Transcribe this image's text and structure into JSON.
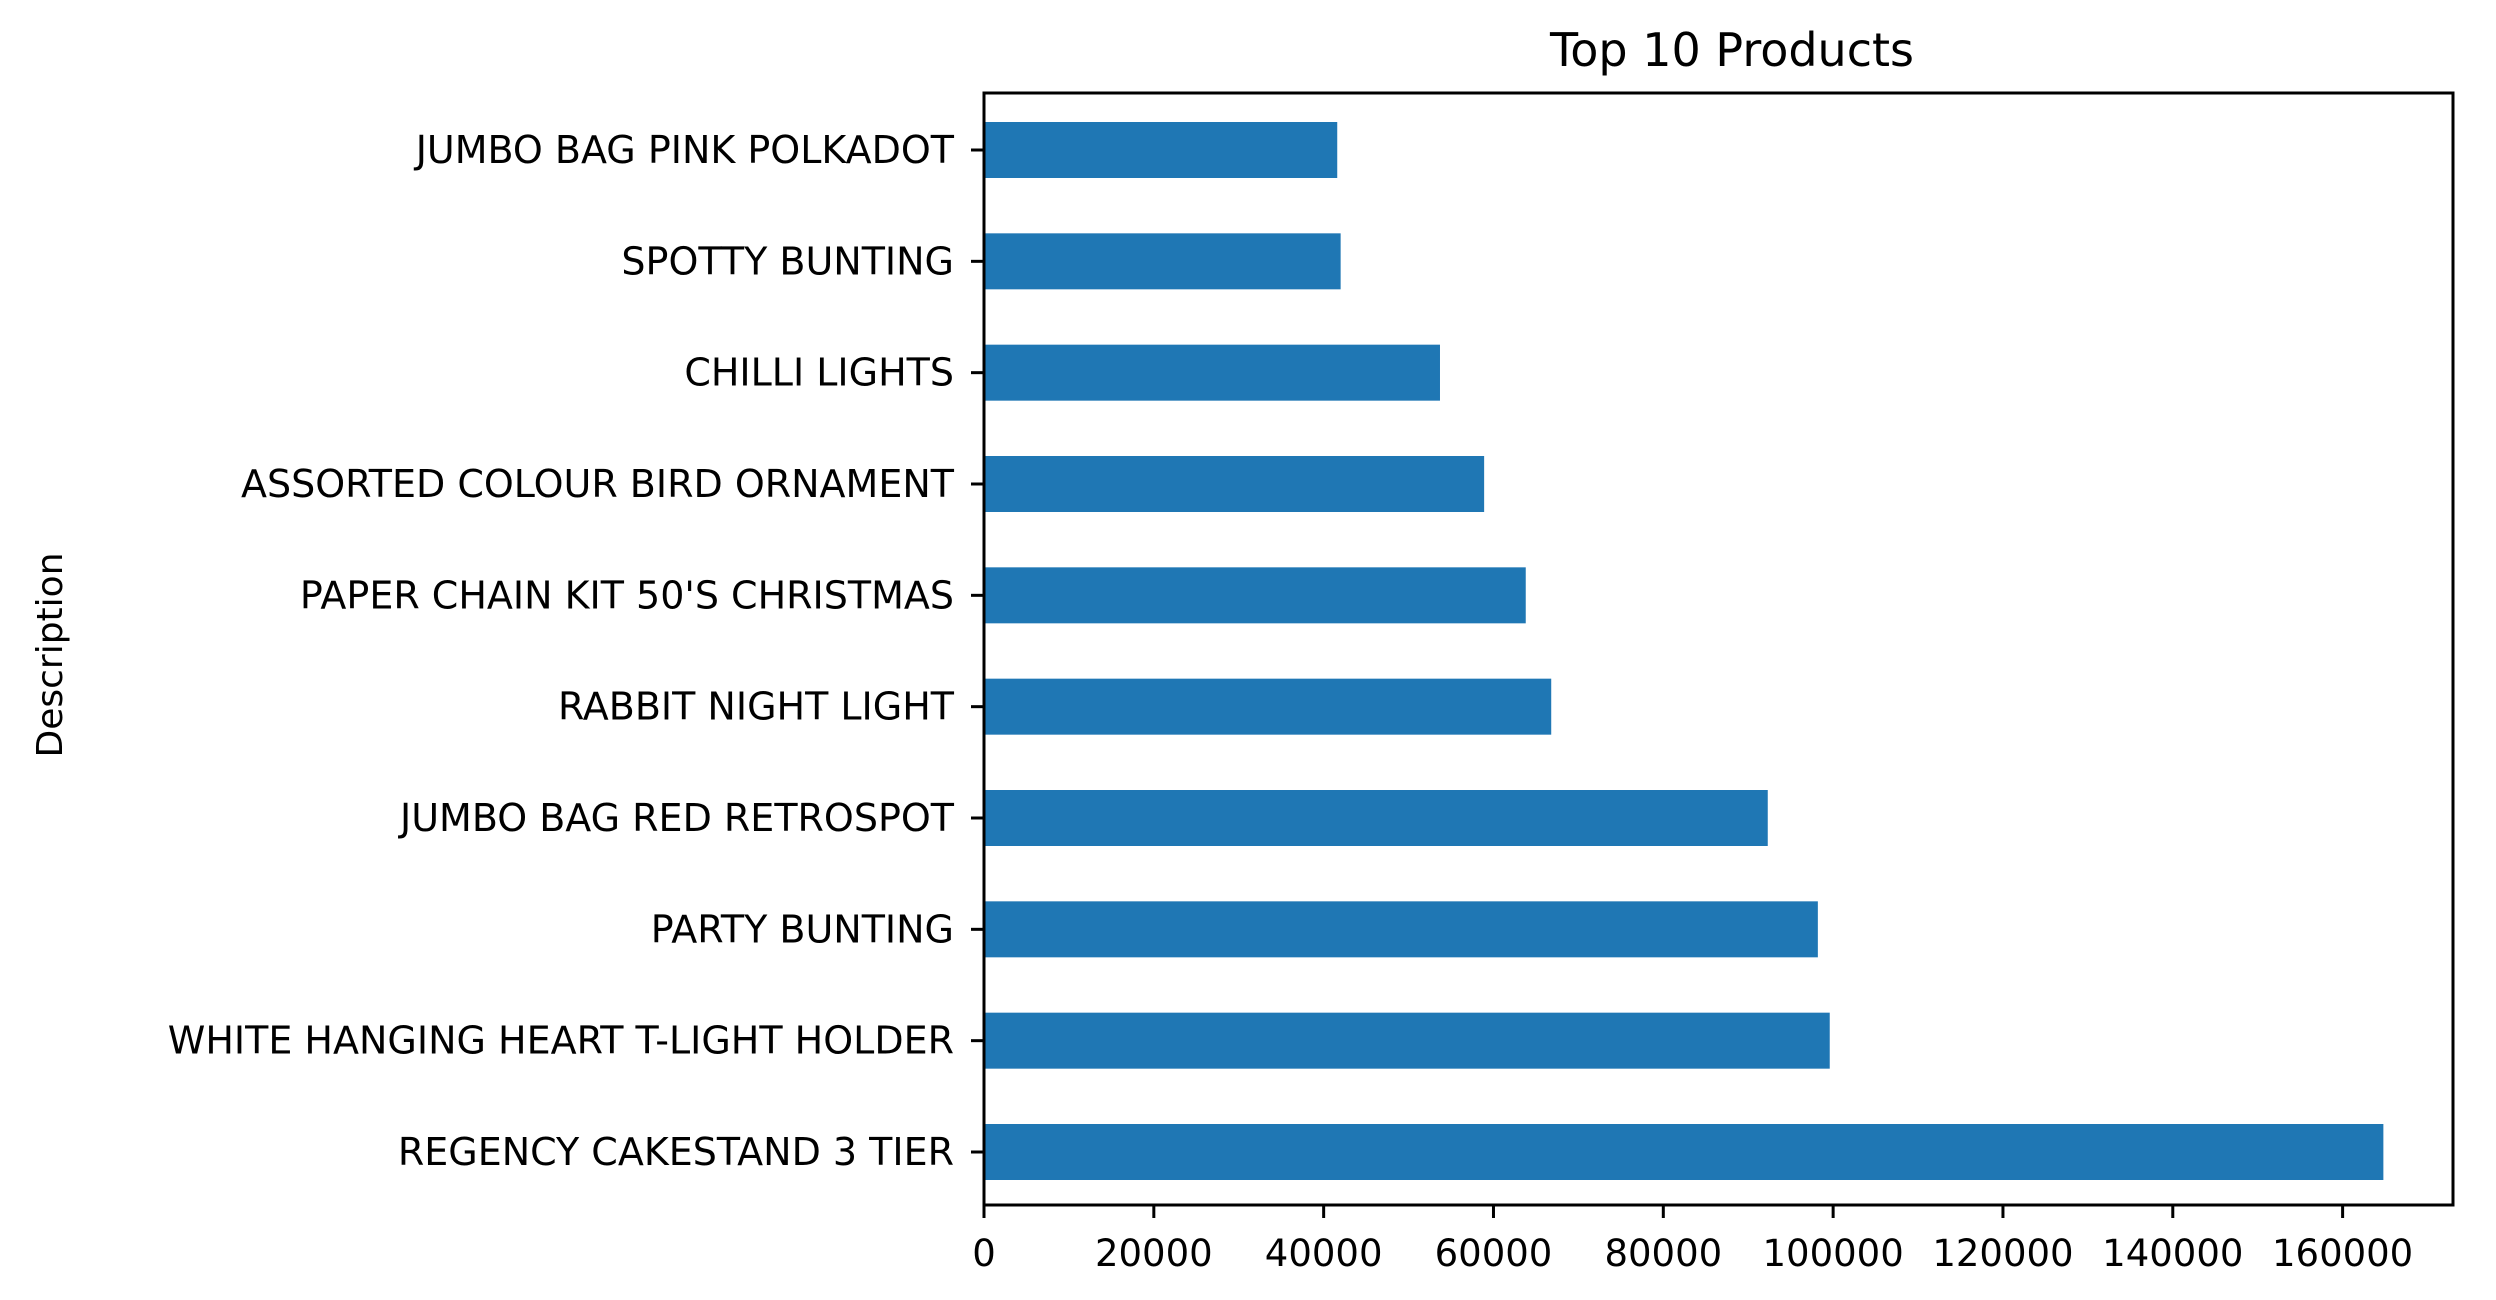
{
  "chart_data": {
    "type": "bar",
    "orientation": "horizontal",
    "title": "Top 10 Products",
    "xlabel": "",
    "ylabel": "Description",
    "categories": [
      "REGENCY CAKESTAND 3 TIER",
      "WHITE HANGING HEART T-LIGHT HOLDER",
      "PARTY BUNTING",
      "JUMBO BAG RED RETROSPOT",
      "RABBIT NIGHT LIGHT",
      "PAPER CHAIN KIT 50'S CHRISTMAS ",
      "ASSORTED COLOUR BIRD ORNAMENT",
      "CHILLI LIGHTS",
      "SPOTTY BUNTING",
      "JUMBO BAG PINK POLKADOT"
    ],
    "values": [
      164800,
      99600,
      98200,
      92300,
      66800,
      63800,
      58900,
      53700,
      42000,
      41600
    ],
    "xlim": [
      0,
      173000
    ],
    "xticks": [
      0,
      20000,
      40000,
      60000,
      80000,
      100000,
      120000,
      140000,
      160000
    ],
    "xtick_labels": [
      "0",
      "20000",
      "40000",
      "60000",
      "80000",
      "100000",
      "120000",
      "140000",
      "160000"
    ],
    "bar_color": "#1f77b4",
    "grid": false,
    "legend": false
  }
}
